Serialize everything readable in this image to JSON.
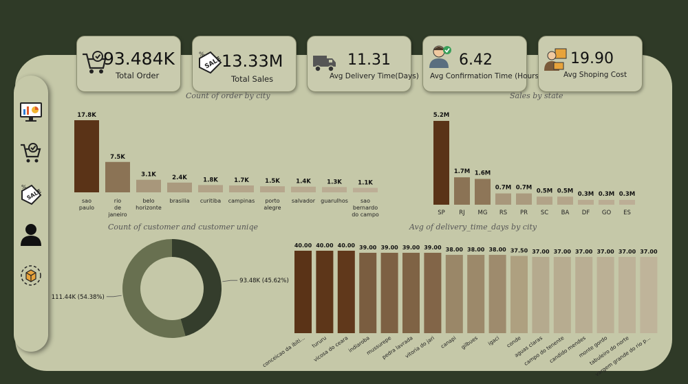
{
  "kpis": [
    {
      "value": "93.484K",
      "label": "Total Order",
      "icon": "cart-check-icon"
    },
    {
      "value": "13.33M",
      "label": "Total Sales",
      "icon": "sale-tag-icon"
    },
    {
      "value": "11.31",
      "label": "Avg Delivery Time(Days)",
      "icon": "delivery-truck-icon"
    },
    {
      "value": "6.42",
      "label": "Avg Confirmation Time (Hours)",
      "icon": "support-agent-icon"
    },
    {
      "value": "19.90",
      "label": "Avg Shoping Cost",
      "icon": "shopping-person-icon"
    }
  ],
  "sidebar": {
    "items": [
      {
        "name": "dashboard-monitor-icon"
      },
      {
        "name": "cart-check-icon"
      },
      {
        "name": "sale-tag-icon"
      },
      {
        "name": "user-icon"
      },
      {
        "name": "delivery-box-icon"
      }
    ]
  },
  "colors": {
    "background": "#2f3a27",
    "panel": "#c5c8a8",
    "highest": "#5a3317",
    "dark_green": "#343d2c",
    "olive": "#687050"
  },
  "chart_data": [
    {
      "type": "bar",
      "title": "Count of order by city",
      "categories": [
        "sao paulo",
        "rio de janeiro",
        "belo horizonte",
        "brasilia",
        "curitiba",
        "campinas",
        "porto alegre",
        "salvador",
        "guarulhos",
        "sao bernardo do campo"
      ],
      "values": [
        17800,
        7500,
        3100,
        2400,
        1800,
        1700,
        1500,
        1400,
        1300,
        1100
      ],
      "labels": [
        "17.8K",
        "7.5K",
        "3.1K",
        "2.4K",
        "1.8K",
        "1.7K",
        "1.5K",
        "1.4K",
        "1.3K",
        "1.1K"
      ],
      "colors": [
        "#5a3317",
        "#8b7355",
        "#a8977b",
        "#aa9a7e",
        "#b2a388",
        "#b4a58a",
        "#b6a78d",
        "#b8aa90",
        "#baac93",
        "#bcae96"
      ]
    },
    {
      "type": "bar",
      "title": "Sales by state",
      "categories": [
        "SP",
        "RJ",
        "MG",
        "RS",
        "PR",
        "SC",
        "BA",
        "DF",
        "GO",
        "ES"
      ],
      "values": [
        5200000,
        1700000,
        1600000,
        700000,
        700000,
        500000,
        500000,
        300000,
        300000,
        300000
      ],
      "labels": [
        "5.2M",
        "1.7M",
        "1.6M",
        "0.7M",
        "0.7M",
        "0.5M",
        "0.5M",
        "0.3M",
        "0.3M",
        "0.3M"
      ],
      "colors": [
        "#5a3317",
        "#8b7355",
        "#8e7658",
        "#a8977b",
        "#aa9a7e",
        "#b2a388",
        "#b4a58a",
        "#b8aa90",
        "#baac93",
        "#bcae96"
      ]
    },
    {
      "type": "pie",
      "title": "Count of customer and customer uniqe",
      "slices": [
        {
          "value": 93480,
          "label": "93.48K (45.62%)",
          "color": "#343d2c"
        },
        {
          "value": 111440,
          "label": "111.44K (54.38%)",
          "color": "#687050"
        }
      ]
    },
    {
      "type": "bar",
      "title": "Avg of delivery_time_days by city",
      "categories": [
        "conceicao da ibiti...",
        "tururu",
        "vicosa do ceara",
        "indiaroba",
        "mussurepe",
        "pedra lavrada",
        "vitoria do jari",
        "canapi",
        "gilbues",
        "igaci",
        "conde",
        "aguas claras",
        "campo do tenente",
        "candido mendes",
        "monte gordo",
        "tabuleiro do norte",
        "vargem grande do rio p..."
      ],
      "values": [
        40,
        40,
        40,
        39,
        39,
        39,
        39,
        38,
        38,
        38,
        37.5,
        37,
        37,
        37,
        37,
        37,
        37
      ],
      "labels": [
        "40.00",
        "40.00",
        "40.00",
        "39.00",
        "39.00",
        "39.00",
        "39.00",
        "38.00",
        "38.00",
        "38.00",
        "37.50",
        "37.00",
        "37.00",
        "37.00",
        "37.00",
        "37.00",
        "37.00"
      ],
      "colors": [
        "#5a3317",
        "#5d3619",
        "#60381b",
        "#7a5d40",
        "#7d6043",
        "#7f6345",
        "#826548",
        "#9a8768",
        "#9c896a",
        "#9e8b6d",
        "#aea080",
        "#b5aa8e",
        "#b7ac90",
        "#b9ae93",
        "#bbb095",
        "#bdb298",
        "#bfb49a"
      ]
    }
  ]
}
